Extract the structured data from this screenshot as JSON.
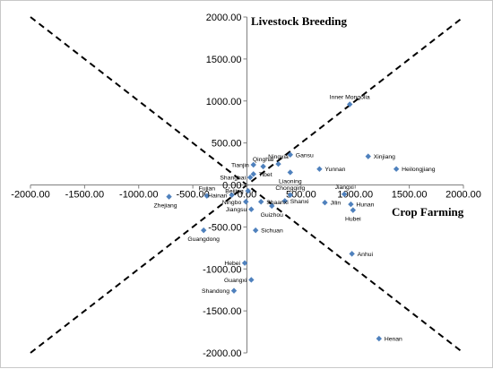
{
  "chart_data": {
    "type": "scatter",
    "title": "",
    "xlabel": "Crop Farming",
    "ylabel": "Livestock Breeding",
    "xlim": [
      -2000,
      2000
    ],
    "ylim": [
      -2000,
      2000
    ],
    "xticks": [
      "-2000.00",
      "-1500.00",
      "-1000.00",
      "-500.00",
      "0.00",
      "500.00",
      "1000.00",
      "1500.00",
      "2000.00"
    ],
    "yticks": [
      "2000.00",
      "1500.00",
      "1000.00",
      "500.00",
      "0.00",
      "-500.00",
      "-1000.00",
      "-1500.00",
      "-2000.00"
    ],
    "marker_color": "#4f81bd",
    "reference_lines": [
      "y = x",
      "y = -x"
    ],
    "points": [
      {
        "label": "Inner Mongolia",
        "x": 950,
        "y": 960
      },
      {
        "label": "Xinjiang",
        "x": 1120,
        "y": 340
      },
      {
        "label": "Heilongjiang",
        "x": 1380,
        "y": 190
      },
      {
        "label": "Gansu",
        "x": 400,
        "y": 360
      },
      {
        "label": "Yunnan",
        "x": 670,
        "y": 190
      },
      {
        "label": "Ningxia",
        "x": 290,
        "y": 250
      },
      {
        "label": "Qinghai",
        "x": 150,
        "y": 220
      },
      {
        "label": "Liaoning",
        "x": 400,
        "y": 150
      },
      {
        "label": "Tianjin",
        "x": 60,
        "y": 240
      },
      {
        "label": "Tibet",
        "x": 60,
        "y": 130
      },
      {
        "label": "Shanghai",
        "x": 30,
        "y": 90
      },
      {
        "label": "Beijing",
        "x": 10,
        "y": -70
      },
      {
        "label": "Chongqing",
        "x": 400,
        "y": -120
      },
      {
        "label": "Jiangxi",
        "x": 900,
        "y": -110
      },
      {
        "label": "Jilin",
        "x": 720,
        "y": -210
      },
      {
        "label": "Hunan",
        "x": 960,
        "y": -230
      },
      {
        "label": "Hainan",
        "x": -140,
        "y": -120
      },
      {
        "label": "Fujian",
        "x": -370,
        "y": -130
      },
      {
        "label": "Shaanxi",
        "x": 130,
        "y": -200
      },
      {
        "label": "Shanxi",
        "x": 350,
        "y": -190
      },
      {
        "label": "Guizhou",
        "x": 230,
        "y": -250
      },
      {
        "label": "Ningbo",
        "x": -10,
        "y": -200
      },
      {
        "label": "Jiangsu",
        "x": 40,
        "y": -290
      },
      {
        "label": "Hubei",
        "x": 980,
        "y": -300
      },
      {
        "label": "Zhejiang",
        "x": -720,
        "y": -140
      },
      {
        "label": "Guangdong",
        "x": -400,
        "y": -540
      },
      {
        "label": "Sichuan",
        "x": 80,
        "y": -540
      },
      {
        "label": "Anhui",
        "x": 970,
        "y": -820
      },
      {
        "label": "Hebei",
        "x": -20,
        "y": -930
      },
      {
        "label": "Guangxi",
        "x": 40,
        "y": -1130
      },
      {
        "label": "Shandong",
        "x": -120,
        "y": -1260
      },
      {
        "label": "Henan",
        "x": 1220,
        "y": -1830
      }
    ]
  }
}
